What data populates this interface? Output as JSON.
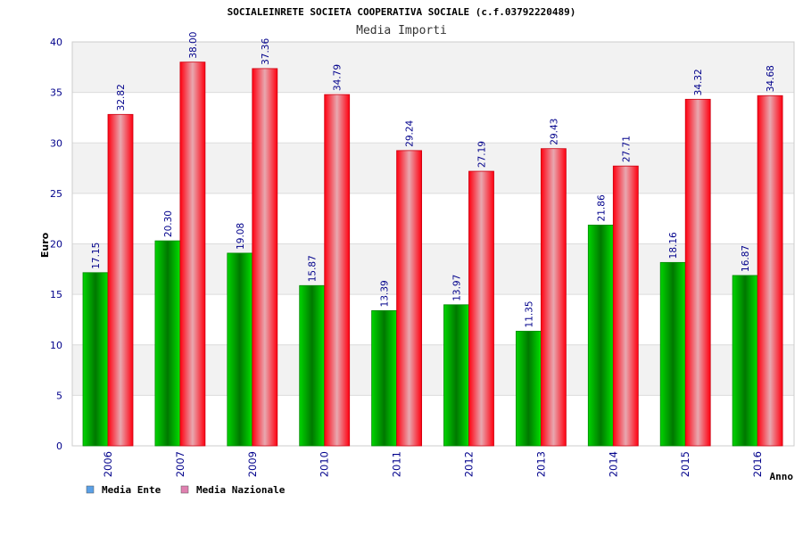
{
  "chart_data": {
    "type": "bar",
    "title": "SOCIALEINRETE SOCIETA COOPERATIVA SOCIALE (c.f.03792220489)",
    "subtitle": "Media Importi",
    "xlabel": "Anno",
    "ylabel": "Euro",
    "ylim": [
      0,
      40
    ],
    "yticks": [
      "0",
      "5",
      "10",
      "15",
      "20",
      "25",
      "30",
      "35",
      "40"
    ],
    "categories": [
      "2006",
      "2007",
      "2009",
      "2010",
      "2011",
      "2012",
      "2013",
      "2014",
      "2015",
      "2016"
    ],
    "series": [
      {
        "name": "Media Ente",
        "values": [
          17.15,
          20.3,
          19.08,
          15.87,
          13.39,
          13.97,
          11.35,
          21.86,
          18.16,
          16.87
        ],
        "labels": [
          "17.15",
          "20.30",
          "19.08",
          "15.87",
          "13.39",
          "13.97",
          "11.35",
          "21.86",
          "18.16",
          "16.87"
        ],
        "color": "#00c000",
        "legend_color": "#5aa0e6"
      },
      {
        "name": "Media Nazionale",
        "values": [
          32.82,
          38.0,
          37.36,
          34.79,
          29.24,
          27.19,
          29.43,
          27.71,
          34.32,
          34.68
        ],
        "labels": [
          "32.82",
          "38.00",
          "37.36",
          "34.79",
          "29.24",
          "27.19",
          "29.43",
          "27.71",
          "34.32",
          "34.68"
        ],
        "color": "#ff1020",
        "legend_color": "#e080b0"
      }
    ],
    "grid": true,
    "legend_position": "bottom-left"
  }
}
